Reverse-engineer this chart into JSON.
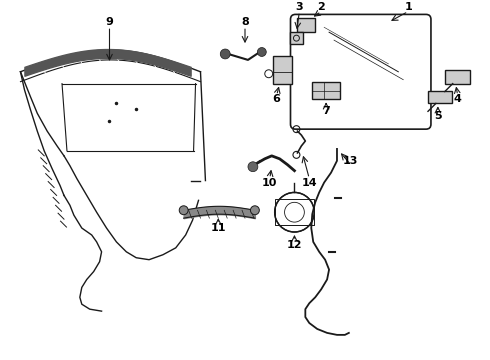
{
  "bg_color": "#ffffff",
  "lc": "#1a1a1a",
  "figsize": [
    4.9,
    3.6
  ],
  "dpi": 100
}
